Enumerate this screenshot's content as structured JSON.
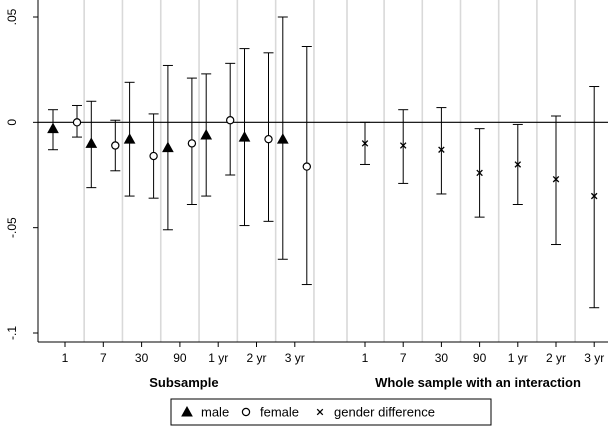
{
  "chart_data": {
    "type": "scatter",
    "title": "",
    "xlabel": "",
    "ylabel": "",
    "ylim": [
      -0.1,
      0.05
    ],
    "y_ticks": [
      0.05,
      0,
      -0.05,
      -0.1
    ],
    "y_tick_labels": [
      ".05",
      "0",
      "-.05",
      "-.1"
    ],
    "reference_line": 0,
    "groups": [
      {
        "label": "Subsample",
        "categories": [
          "1",
          "7",
          "30",
          "90",
          "1 yr",
          "2 yr",
          "3 yr"
        ],
        "series": [
          {
            "name": "male",
            "marker": "triangle",
            "values": [
              -0.003,
              -0.01,
              -0.008,
              -0.012,
              -0.006,
              -0.007,
              -0.008
            ],
            "ci_low": [
              -0.013,
              -0.031,
              -0.035,
              -0.051,
              -0.035,
              -0.049,
              -0.065
            ],
            "ci_high": [
              0.006,
              0.01,
              0.019,
              0.027,
              0.023,
              0.035,
              0.05
            ]
          },
          {
            "name": "female",
            "marker": "circle",
            "values": [
              0.0,
              -0.011,
              -0.016,
              -0.01,
              0.001,
              -0.008,
              -0.021
            ],
            "ci_low": [
              -0.007,
              -0.023,
              -0.036,
              -0.039,
              -0.025,
              -0.047,
              -0.077
            ],
            "ci_high": [
              0.008,
              0.001,
              0.004,
              0.021,
              0.028,
              0.033,
              0.036
            ]
          }
        ]
      },
      {
        "label": "Whole sample with an interaction",
        "categories": [
          "1",
          "7",
          "30",
          "90",
          "1 yr",
          "2 yr",
          "3 yr"
        ],
        "series": [
          {
            "name": "gender difference",
            "marker": "x",
            "values": [
              -0.01,
              -0.011,
              -0.013,
              -0.024,
              -0.02,
              -0.027,
              -0.035
            ],
            "ci_low": [
              -0.02,
              -0.029,
              -0.034,
              -0.045,
              -0.039,
              -0.058,
              -0.088
            ],
            "ci_high": [
              0.0,
              0.006,
              0.007,
              -0.003,
              -0.001,
              0.003,
              0.017
            ]
          }
        ]
      }
    ],
    "legend": {
      "position": "bottom",
      "entries": [
        {
          "name": "male",
          "marker": "triangle"
        },
        {
          "name": "female",
          "marker": "circle"
        },
        {
          "name": "gender difference",
          "marker": "x"
        }
      ]
    },
    "grid": "vertical-separators",
    "colors": {
      "line": "#000000",
      "grid": "#d9d9d9",
      "background": "#ffffff"
    }
  }
}
